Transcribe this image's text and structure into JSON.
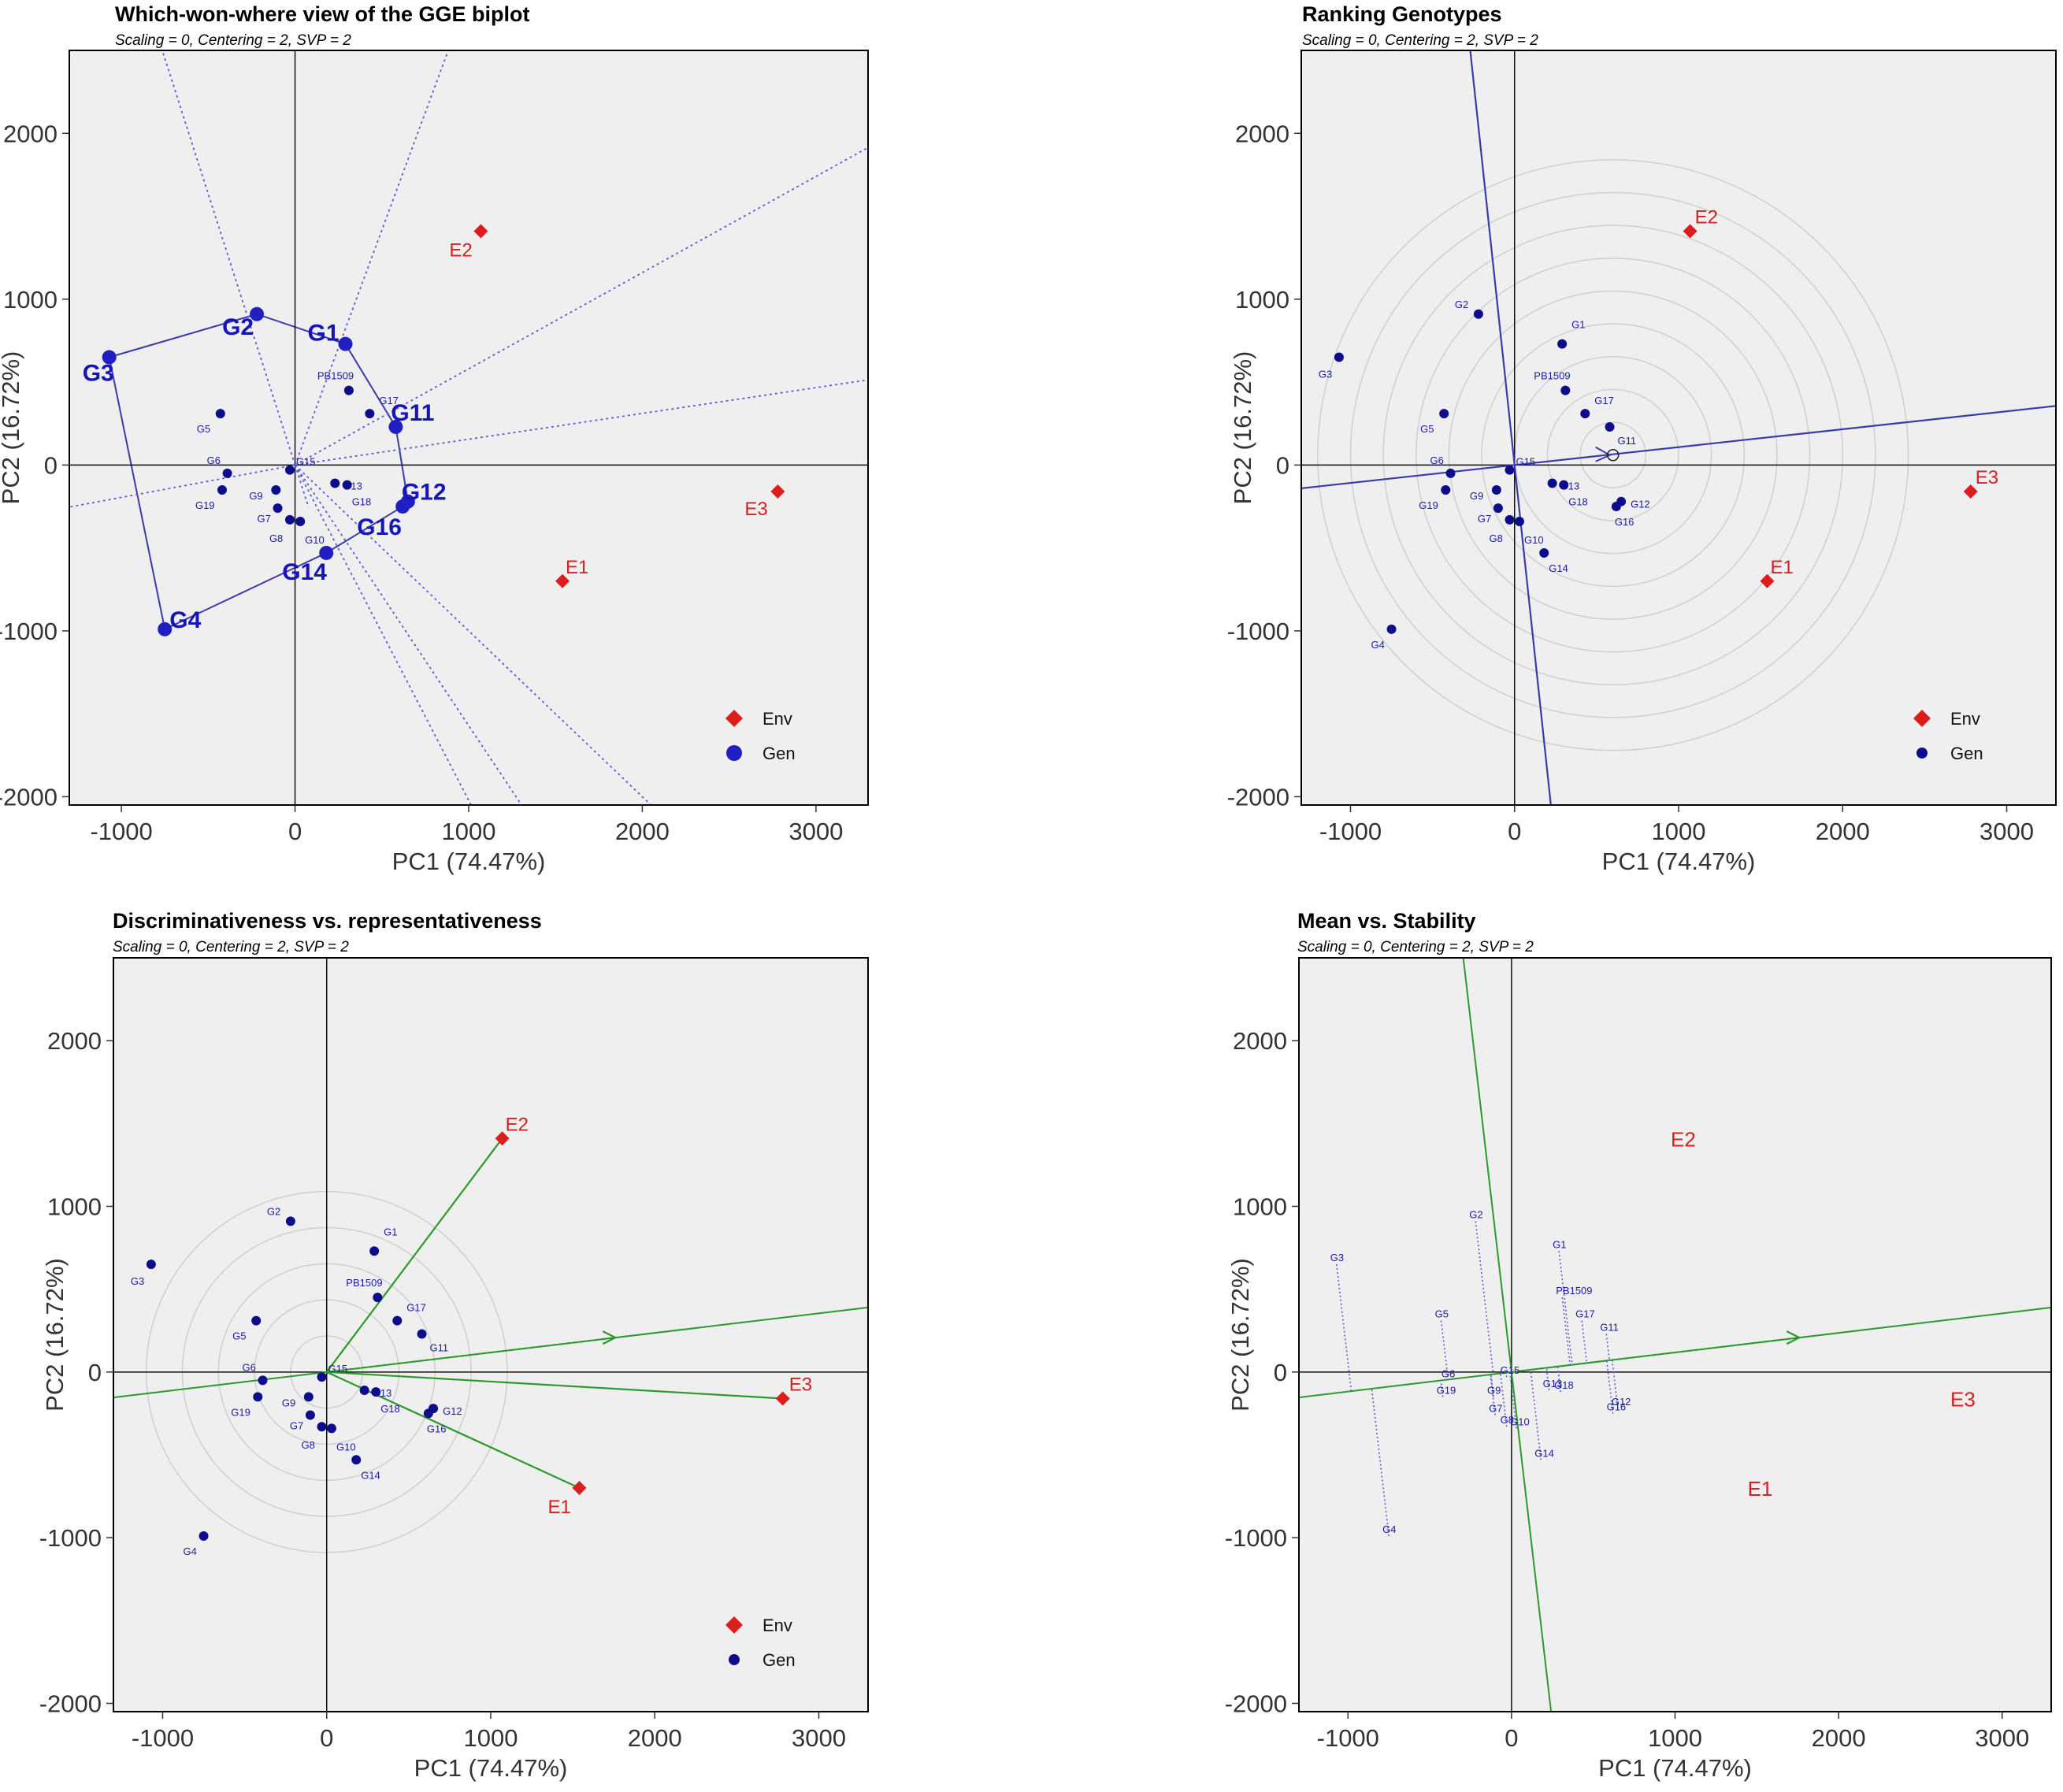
{
  "colors": {
    "genotype": "#0d0d8c",
    "environment": "#dd1c1c",
    "panel_bg": "#efefef",
    "line_blue": "#3a3aa8",
    "line_green": "#2a9a2a"
  },
  "axis_labels": {
    "x": "PC1 (74.47%)",
    "y": "PC2 (16.72%)"
  },
  "panels": [
    {
      "title": "Which-won-where view of the GGE biplot",
      "subtitle": "Scaling = 0, Centering = 2, SVP = 2"
    },
    {
      "title": "Ranking Genotypes",
      "subtitle": "Scaling = 0, Centering = 2, SVP = 2"
    },
    {
      "title": "Discriminativeness vs. representativeness",
      "subtitle": "Scaling = 0, Centering = 2, SVP = 2"
    },
    {
      "title": "Mean vs. Stability",
      "subtitle": "Scaling = 0, Centering = 2, SVP = 2"
    }
  ],
  "legend": {
    "env": "Env",
    "gen": "Gen"
  },
  "chart_data": [
    {
      "type": "scatter",
      "title": "Which-won-where view of the GGE biplot",
      "subtitle": "Scaling = 0, Centering = 2, SVP = 2",
      "xlabel": "PC1 (74.47%)",
      "ylabel": "PC2 (16.72%)",
      "xlim": [
        -1300,
        3300
      ],
      "ylim": [
        -2050,
        2500
      ],
      "xticks": [
        -1000,
        0,
        1000,
        2000,
        3000
      ],
      "yticks": [
        -2000,
        -1000,
        0,
        1000,
        2000
      ],
      "legend": [
        "Env",
        "Gen"
      ],
      "legend_position": "bottom-right",
      "polygon_vertices": [
        "G3",
        "G2",
        "G1",
        "G11",
        "G12",
        "G16",
        "G14",
        "G4"
      ]
    },
    {
      "type": "scatter",
      "title": "Ranking Genotypes",
      "subtitle": "Scaling = 0, Centering = 2, SVP = 2",
      "xlabel": "PC1 (74.47%)",
      "ylabel": "PC2 (16.72%)",
      "xlim": [
        -1300,
        3300
      ],
      "ylim": [
        -2050,
        2500
      ],
      "xticks": [
        -1000,
        0,
        1000,
        2000,
        3000
      ],
      "yticks": [
        -2000,
        -1000,
        0,
        1000,
        2000
      ],
      "legend": [
        "Env",
        "Gen"
      ],
      "legend_position": "bottom-right",
      "ideal_genotype": [
        600,
        60
      ]
    },
    {
      "type": "scatter",
      "title": "Discriminativeness vs. representativeness",
      "subtitle": "Scaling = 0, Centering = 2, SVP = 2",
      "xlabel": "PC1 (74.47%)",
      "ylabel": "PC2 (16.72%)",
      "xlim": [
        -1300,
        3300
      ],
      "ylim": [
        -2050,
        2500
      ],
      "xticks": [
        -1000,
        0,
        1000,
        2000,
        3000
      ],
      "yticks": [
        -2000,
        -1000,
        0,
        1000,
        2000
      ],
      "legend": [
        "Env",
        "Gen"
      ],
      "legend_position": "bottom-right"
    },
    {
      "type": "scatter",
      "title": "Mean vs. Stability",
      "subtitle": "Scaling = 0, Centering = 2, SVP = 2",
      "xlabel": "PC1 (74.47%)",
      "ylabel": "PC2 (16.72%)",
      "xlim": [
        -1300,
        3300
      ],
      "ylim": [
        -2050,
        2500
      ],
      "xticks": [
        -1000,
        0,
        1000,
        2000,
        3000
      ],
      "yticks": [
        -2000,
        -1000,
        0,
        1000,
        2000
      ]
    }
  ],
  "genotypes": [
    {
      "name": "G1",
      "x": 290,
      "y": 730
    },
    {
      "name": "G2",
      "x": -220,
      "y": 910
    },
    {
      "name": "G3",
      "x": -1070,
      "y": 650
    },
    {
      "name": "G4",
      "x": -750,
      "y": -990
    },
    {
      "name": "G5",
      "x": -430,
      "y": 310
    },
    {
      "name": "G6",
      "x": -390,
      "y": -50
    },
    {
      "name": "G7",
      "x": -100,
      "y": -260
    },
    {
      "name": "G8",
      "x": -30,
      "y": -330
    },
    {
      "name": "G9",
      "x": -110,
      "y": -150
    },
    {
      "name": "G10",
      "x": 30,
      "y": -340
    },
    {
      "name": "G11",
      "x": 580,
      "y": 230
    },
    {
      "name": "G12",
      "x": 650,
      "y": -220
    },
    {
      "name": "G13",
      "x": 230,
      "y": -110
    },
    {
      "name": "G14",
      "x": 180,
      "y": -530
    },
    {
      "name": "G15",
      "x": -30,
      "y": -30
    },
    {
      "name": "G16",
      "x": 620,
      "y": -250
    },
    {
      "name": "G17",
      "x": 430,
      "y": 310
    },
    {
      "name": "G18",
      "x": 300,
      "y": -120
    },
    {
      "name": "G19",
      "x": -420,
      "y": -150
    },
    {
      "name": "PB1509",
      "x": 310,
      "y": 450
    }
  ],
  "environments": [
    {
      "name": "E1",
      "x": 1540,
      "y": -700
    },
    {
      "name": "E2",
      "x": 1070,
      "y": 1410
    },
    {
      "name": "E3",
      "x": 2780,
      "y": -160
    }
  ]
}
